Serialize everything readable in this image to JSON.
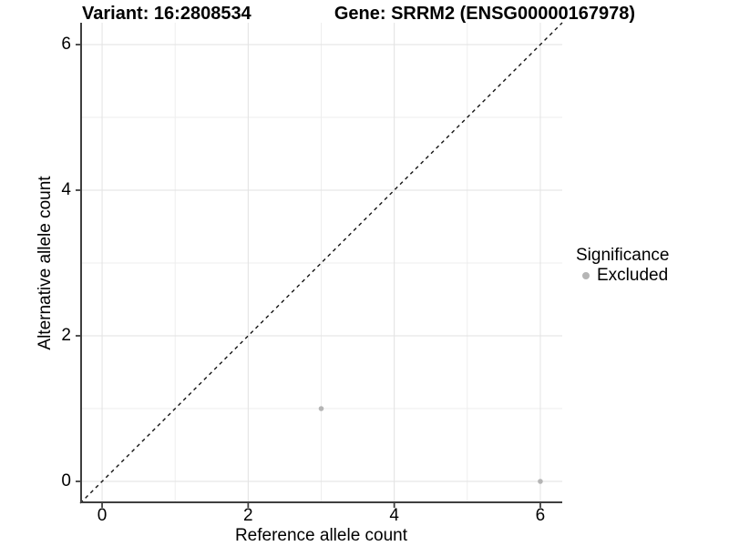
{
  "titles": {
    "left": "Variant: 16:2808534",
    "right": "Gene: SRRM2 (ENSG00000167978)"
  },
  "chart_data": {
    "type": "scatter",
    "title": "Variant: 16:2808534 — Gene: SRRM2 (ENSG00000167978)",
    "xlabel": "Reference allele count",
    "ylabel": "Alternative allele count",
    "xlim": [
      -0.3,
      6.3
    ],
    "ylim": [
      -0.3,
      6.3
    ],
    "xticks": [
      0,
      2,
      4,
      6
    ],
    "yticks": [
      0,
      2,
      4,
      6
    ],
    "xticks_minor": [
      1,
      3,
      5
    ],
    "yticks_minor": [
      1,
      3,
      5
    ],
    "grid": "on",
    "series": [
      {
        "name": "Excluded",
        "color": "#b5b5b5",
        "points": [
          {
            "x": 3,
            "y": 1
          },
          {
            "x": 6,
            "y": 0
          }
        ]
      }
    ],
    "reference_line": {
      "kind": "identity y=x",
      "style": "dashed",
      "color": "#141414"
    },
    "legend": {
      "title": "Significance",
      "position": "right",
      "entries": [
        {
          "label": "Excluded",
          "color": "#b5b5b5"
        }
      ]
    }
  },
  "colors": {
    "background": "#ffffff",
    "grid_major": "#e2e2e2",
    "grid_minor": "#eeeeee",
    "axis_line": "#3f3f3f",
    "tick_mark": "#3f3f3f",
    "point": "#b5b5b5",
    "text": "#000000"
  }
}
